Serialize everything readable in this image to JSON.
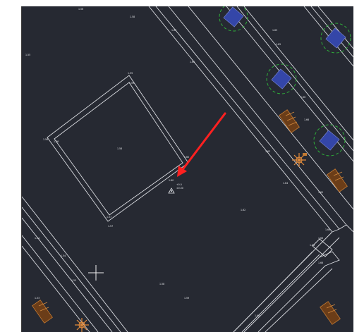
{
  "window": {
    "background_color": "#ffffff",
    "canvas_color": "#262932"
  },
  "drawing": {
    "line_color": "#d9dbe0",
    "tree_color": "#2fae3a",
    "bench_color": "#c47a32",
    "annotation_color": "#ff2020"
  },
  "icons": {
    "crosshair": "crosshair-cursor-icon",
    "pointer_arrow": "red-arrow-annotation",
    "survey_point": "survey-point-triangle-icon",
    "tree": "tree-symbol-icon",
    "bench": "bench-symbol-icon",
    "lamp": "lamp-symbol-icon"
  }
}
